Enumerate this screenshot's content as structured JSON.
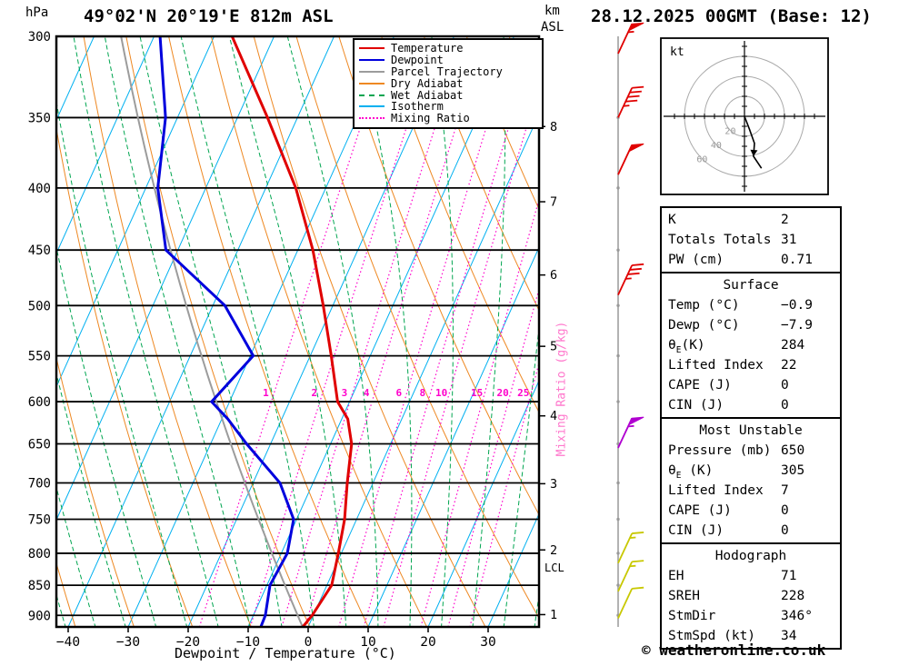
{
  "header": {
    "station_title": "49°02'N 20°19'E 812m ASL",
    "run_title": "28.12.2025 00GMT (Base: 12)",
    "pressure_unit": "hPa",
    "height_unit_line1": "km",
    "height_unit_line2": "ASL"
  },
  "axes": {
    "pressure_ticks": [
      300,
      350,
      400,
      450,
      500,
      550,
      600,
      650,
      700,
      750,
      800,
      850,
      900
    ],
    "temp_ticks": [
      -40,
      -30,
      -20,
      -10,
      0,
      10,
      20,
      30
    ],
    "height_ticks_km": [
      1,
      2,
      3,
      4,
      5,
      6,
      7,
      8
    ],
    "xlabel": "Dewpoint / Temperature (°C)",
    "mixing_ratio_axis_label": "Mixing Ratio (g/kg)",
    "lcl_label": "LCL"
  },
  "legend": [
    {
      "label": "Temperature",
      "color": "#e00000",
      "style": "solid"
    },
    {
      "label": "Dewpoint",
      "color": "#0000dd",
      "style": "solid"
    },
    {
      "label": "Parcel Trajectory",
      "color": "#9c9c9c",
      "style": "solid"
    },
    {
      "label": "Dry Adiabat",
      "color": "#ee8822",
      "style": "solid"
    },
    {
      "label": "Wet Adiabat",
      "color": "#00a550",
      "style": "dashed"
    },
    {
      "label": "Isotherm",
      "color": "#00b0f0",
      "style": "solid"
    },
    {
      "label": "Mixing Ratio",
      "color": "#ff00cc",
      "style": "dotted"
    }
  ],
  "chart_data": {
    "type": "skewt",
    "pressure_hPa": [
      920,
      900,
      850,
      800,
      750,
      700,
      650,
      620,
      600,
      550,
      500,
      450,
      400,
      350,
      300
    ],
    "temperature_C": [
      -0.9,
      -0.2,
      0.8,
      -0.5,
      -2.0,
      -4.3,
      -6.5,
      -9.0,
      -12.0,
      -16.5,
      -21.6,
      -27.5,
      -35.0,
      -45.0,
      -57.0
    ],
    "dewpoint_C": [
      -7.9,
      -8.0,
      -9.5,
      -9.0,
      -10.5,
      -15.5,
      -24.0,
      -29.0,
      -33.0,
      -29.5,
      -38.0,
      -52.0,
      -58.0,
      -62.0,
      -69.0
    ],
    "parcel_theta_K": 278.8,
    "lcl_hPa": 826,
    "isotherm_step_C": 10,
    "mixing_ratio_lines_gkg": [
      1,
      2,
      3,
      4,
      6,
      8,
      10,
      15,
      20,
      25
    ],
    "wind_barbs": [
      {
        "p_hPa": 310,
        "speed_kt": 55,
        "color": "#e00000"
      },
      {
        "p_hPa": 350,
        "speed_kt": 45,
        "color": "#e00000"
      },
      {
        "p_hPa": 390,
        "speed_kt": 50,
        "color": "#e00000"
      },
      {
        "p_hPa": 490,
        "speed_kt": 35,
        "color": "#e00000"
      },
      {
        "p_hPa": 655,
        "speed_kt": 55,
        "color": "#b000d0"
      },
      {
        "p_hPa": 815,
        "speed_kt": 15,
        "color": "#c8c800"
      },
      {
        "p_hPa": 860,
        "speed_kt": 15,
        "color": "#c8c800"
      },
      {
        "p_hPa": 905,
        "speed_kt": 10,
        "color": "#c8c800"
      }
    ],
    "hodograph": {
      "rings_kt": [
        20,
        40,
        60
      ],
      "trace_uv_kt": [
        [
          0,
          0
        ],
        [
          5,
          -13
        ],
        [
          10,
          -27
        ],
        [
          9,
          -40
        ],
        [
          17,
          -52
        ]
      ]
    }
  },
  "hodograph": {
    "unit": "kt"
  },
  "table": {
    "sections": [
      {
        "header": null,
        "rows": [
          [
            "K",
            "2"
          ],
          [
            "Totals Totals",
            "31"
          ],
          [
            "PW (cm)",
            "0.71"
          ]
        ]
      },
      {
        "header": "Surface",
        "rows": [
          [
            "Temp (°C)",
            "−0.9"
          ],
          [
            "Dewp (°C)",
            "−7.9"
          ],
          [
            "θ[E](K)",
            "284"
          ],
          [
            "Lifted Index",
            "22"
          ],
          [
            "CAPE (J)",
            "0"
          ],
          [
            "CIN (J)",
            "0"
          ]
        ]
      },
      {
        "header": "Most Unstable",
        "rows": [
          [
            "Pressure (mb)",
            "650"
          ],
          [
            "θ[E] (K)",
            "305"
          ],
          [
            "Lifted Index",
            "7"
          ],
          [
            "CAPE (J)",
            "0"
          ],
          [
            "CIN (J)",
            "0"
          ]
        ]
      },
      {
        "header": "Hodograph",
        "rows": [
          [
            "EH",
            "71"
          ],
          [
            "SREH",
            "228"
          ],
          [
            "StmDir",
            "346°"
          ],
          [
            "StmSpd (kt)",
            "34"
          ]
        ]
      }
    ]
  },
  "footer": {
    "copyright": "© weatheronline.co.uk"
  },
  "colors": {
    "temperature": "#e00000",
    "dewpoint": "#0000dd",
    "parcel": "#9c9c9c",
    "dry_adiabat": "#ee8822",
    "wet_adiabat": "#00a550",
    "isotherm": "#00b0f0",
    "mixing_ratio": "#ff00cc",
    "axis": "#000000",
    "wind_staff": "#999999"
  }
}
